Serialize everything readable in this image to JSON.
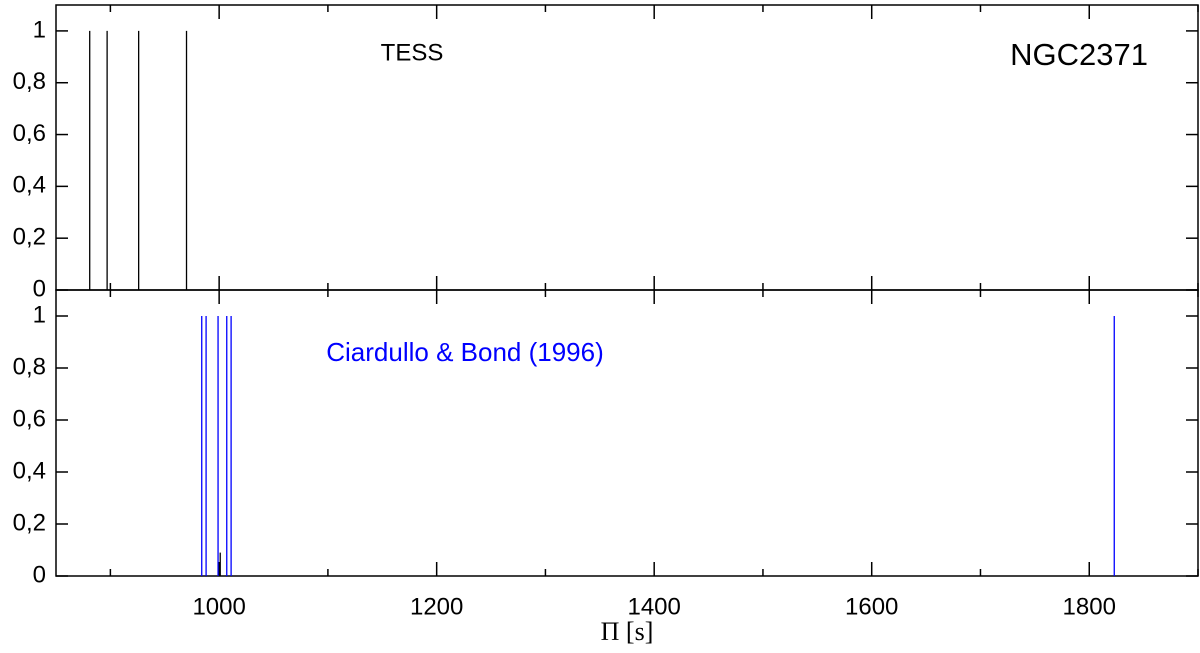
{
  "chart_data": [
    {
      "type": "stem",
      "annotations": [
        "TESS",
        "NGC2371"
      ],
      "xlim": [
        850,
        1900
      ],
      "xticks": [
        1000,
        1200,
        1400,
        1600,
        1800
      ],
      "xminorticks": [
        900,
        1100,
        1300,
        1500,
        1700,
        1900
      ],
      "ylim": [
        0,
        1.1
      ],
      "yticks": [
        0,
        {
          "value": 0.2,
          "label": "0,2"
        },
        {
          "value": 0.4,
          "label": "0,4"
        },
        {
          "value": 0.6,
          "label": "0,6"
        },
        {
          "value": 0.8,
          "label": "0,8"
        },
        1
      ],
      "series": [
        {
          "color": "#000000",
          "x": [
            881,
            897,
            926,
            970
          ],
          "values": [
            1,
            1,
            1,
            1
          ]
        }
      ]
    },
    {
      "type": "stem",
      "annotations": [
        "Ciardullo & Bond  (1996)"
      ],
      "xlabel": "Π [s]",
      "xlim": [
        850,
        1900
      ],
      "xticks": [
        1000,
        1200,
        1400,
        1600,
        1800
      ],
      "xminorticks": [
        900,
        1100,
        1300,
        1500,
        1700,
        1900
      ],
      "ylim": [
        0,
        1.1
      ],
      "yticks": [
        0,
        {
          "value": 0.2,
          "label": "0,2"
        },
        {
          "value": 0.4,
          "label": "0,4"
        },
        {
          "value": 0.6,
          "label": "0,6"
        },
        {
          "value": 0.8,
          "label": "0,8"
        },
        1
      ],
      "series": [
        {
          "color": "#0000ff",
          "x": [
            984,
            988,
            999,
            1007,
            1011,
            1823
          ],
          "values": [
            1,
            1,
            1,
            1,
            1,
            1
          ]
        },
        {
          "color": "#000000",
          "x": [
            1001
          ],
          "values": [
            0.09
          ]
        }
      ]
    }
  ]
}
